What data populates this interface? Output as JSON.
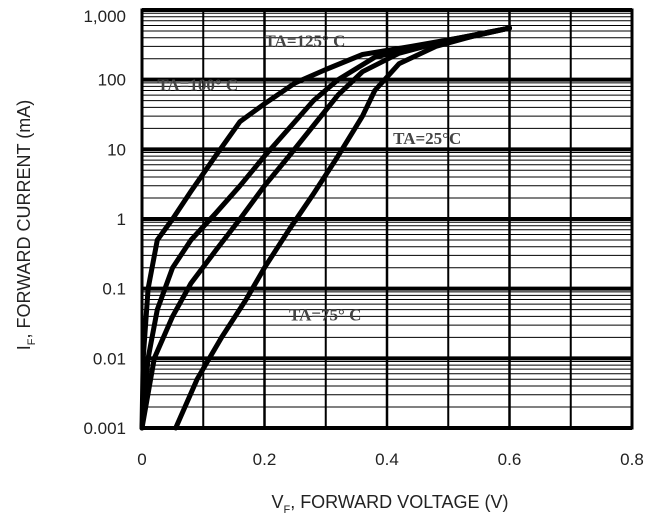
{
  "chart_data": {
    "type": "line",
    "ylog": true,
    "xlim": [
      0,
      0.8
    ],
    "ylim": [
      0.001,
      1000
    ],
    "xticks": [
      "0",
      "0.2",
      "0.4",
      "0.6",
      "0.8"
    ],
    "xtick_values": [
      0,
      0.2,
      0.4,
      0.6,
      0.8
    ],
    "yticks": [
      "0.001",
      "0.01",
      "0.1",
      "1",
      "10",
      "100",
      "1,000"
    ],
    "ytick_values": [
      0.001,
      0.01,
      0.1,
      1,
      10,
      100,
      1000
    ],
    "xlabel_main": "V",
    "xlabel_sub": "F",
    "xlabel_rest": ", FORWARD VOLTAGE (V)",
    "ylabel_main": "I",
    "ylabel_sub": "F",
    "ylabel_rest": ", FORWARD CURRENT (mA)",
    "grid": true,
    "series": [
      {
        "name": "TA=125° C",
        "x": [
          0,
          0.002,
          0.01,
          0.025,
          0.05,
          0.08,
          0.12,
          0.16,
          0.2,
          0.25,
          0.3,
          0.36,
          0.44,
          0.52,
          0.6
        ],
        "y": [
          0.001,
          0.01,
          0.1,
          0.5,
          1,
          2.5,
          8,
          25,
          45,
          90,
          140,
          230,
          300,
          400,
          550
        ]
      },
      {
        "name": "TA=100° C",
        "x": [
          0,
          0.01,
          0.025,
          0.05,
          0.08,
          0.12,
          0.16,
          0.2,
          0.24,
          0.28,
          0.32,
          0.38,
          0.46,
          0.53,
          0.6
        ],
        "y": [
          0.001,
          0.01,
          0.05,
          0.2,
          0.5,
          1.2,
          3,
          8,
          20,
          50,
          100,
          210,
          310,
          400,
          550
        ]
      },
      {
        "name": "TA=75° C",
        "x": [
          0,
          0.02,
          0.05,
          0.08,
          0.12,
          0.16,
          0.2,
          0.24,
          0.28,
          0.32,
          0.36,
          0.42,
          0.5,
          0.6
        ],
        "y": [
          0.001,
          0.01,
          0.04,
          0.12,
          0.35,
          1,
          3,
          8,
          22,
          60,
          130,
          240,
          370,
          550
        ]
      },
      {
        "name": "TA=25°C",
        "x": [
          0.055,
          0.09,
          0.13,
          0.17,
          0.2,
          0.24,
          0.28,
          0.32,
          0.36,
          0.38,
          0.42,
          0.48,
          0.54,
          0.6
        ],
        "y": [
          0.001,
          0.005,
          0.02,
          0.07,
          0.2,
          0.7,
          2.3,
          8,
          30,
          70,
          170,
          300,
          420,
          550
        ]
      }
    ],
    "annotations": [
      {
        "text": "TA=125°  C",
        "x": 0.2,
        "y": 300
      },
      {
        "text": "TA=100°  C",
        "x": 0.025,
        "y": 70
      },
      {
        "text": "TA=25°C",
        "x": 0.41,
        "y": 12
      },
      {
        "text": "TA=75°  C",
        "x": 0.24,
        "y": 0.035
      }
    ]
  }
}
